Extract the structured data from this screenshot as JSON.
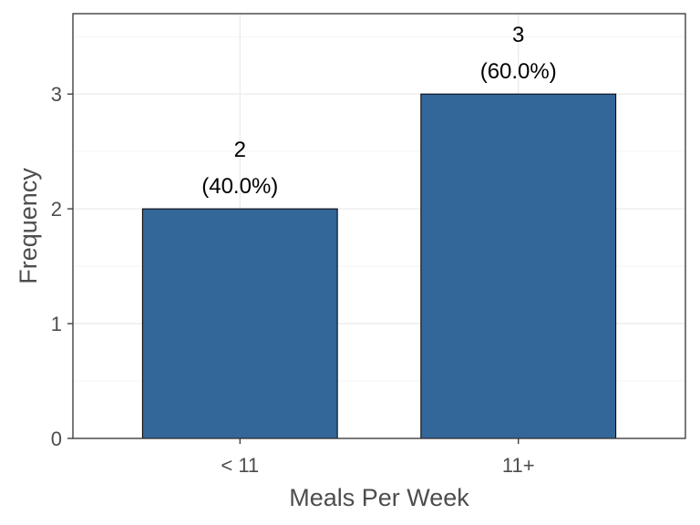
{
  "chart_data": {
    "type": "bar",
    "categories": [
      "< 11",
      "11+"
    ],
    "values": [
      2,
      3
    ],
    "percent_labels": [
      "(40.0%)",
      "(60.0%)"
    ],
    "xlabel": "Meals Per Week",
    "ylabel": "Frequency",
    "ylim": [
      0,
      3.7
    ],
    "yticks": [
      0,
      1,
      2,
      3
    ],
    "grid": true,
    "bar_color": "#336699"
  }
}
